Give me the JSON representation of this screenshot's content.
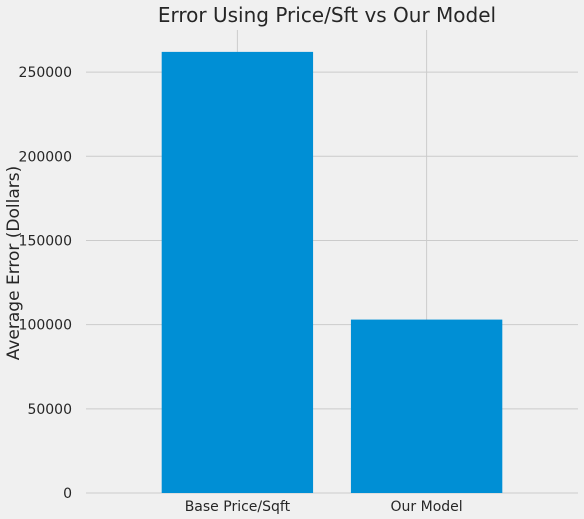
{
  "chart_data": {
    "type": "bar",
    "title": "Error Using Price/Sft vs Our Model",
    "xlabel": "",
    "ylabel": "Average Error (Dollars)",
    "categories": [
      "Base Price/Sqft",
      "Our Model"
    ],
    "values": [
      262000,
      103000
    ],
    "ylim": [
      0,
      275000
    ],
    "yticks": [
      0,
      50000,
      100000,
      150000,
      200000,
      250000
    ],
    "grid": true,
    "bar_color": "#008fd5",
    "background_color": "#f0f0f0",
    "grid_color": "#cbcbcb"
  }
}
